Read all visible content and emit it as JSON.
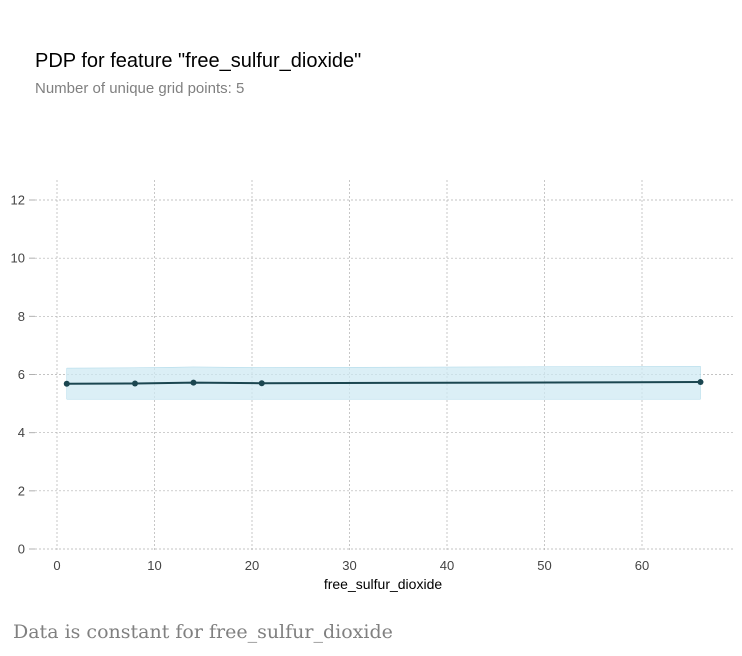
{
  "header": {
    "title": "PDP for feature \"free_sulfur_dioxide\"",
    "subtitle": "Number of unique grid points: 5"
  },
  "footer": {
    "note": "Data is constant for free_sulfur_dioxide"
  },
  "colors": {
    "line": "#1b4650",
    "band": "#cfe9f3",
    "band_edge": "#a9d7e8",
    "grid": "#b0b0b0",
    "tick_text": "#444444"
  },
  "chart_data": {
    "type": "line",
    "title": "PDP for feature \"free_sulfur_dioxide\"",
    "subtitle": "Number of unique grid points: 5",
    "xlabel": "free_sulfur_dioxide",
    "ylabel": "",
    "xlim": [
      0,
      69
    ],
    "ylim": [
      0,
      12.6
    ],
    "xticks": [
      0,
      10,
      20,
      30,
      40,
      50,
      60
    ],
    "yticks": [
      0,
      2,
      4,
      6,
      8,
      10,
      12
    ],
    "grid": true,
    "legend": "none",
    "series": [
      {
        "x": [
          1,
          8,
          14,
          21,
          66
        ],
        "y": [
          5.68,
          5.69,
          5.72,
          5.7,
          5.74
        ],
        "lower": [
          5.15,
          5.15,
          5.15,
          5.15,
          5.15
        ],
        "upper": [
          6.22,
          6.23,
          6.26,
          6.24,
          6.28
        ]
      }
    ]
  }
}
